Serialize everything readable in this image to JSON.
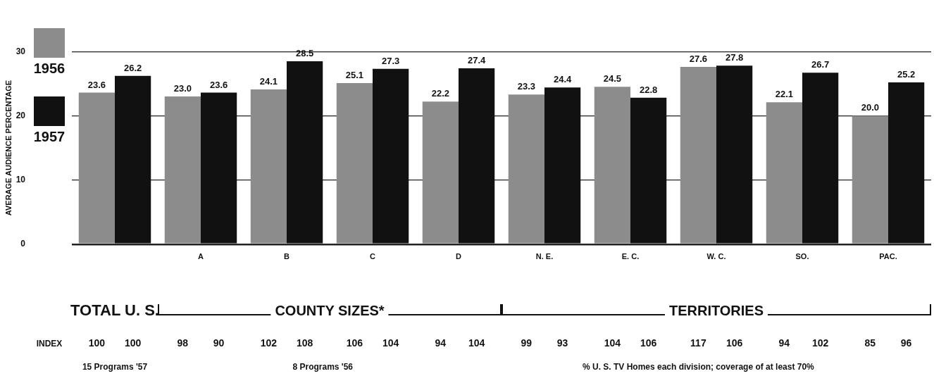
{
  "chart_data": {
    "type": "bar",
    "ylabel": "AVERAGE AUDIENCE PERCENTAGE",
    "categories": [
      null,
      "A",
      "B",
      "C",
      "D",
      "N. E.",
      "E. C.",
      "W. C.",
      "SO.",
      "PAC."
    ],
    "series": [
      {
        "name": "1956",
        "color": "#8c8c8c",
        "values": [
          23.6,
          23.0,
          24.1,
          25.1,
          22.2,
          23.3,
          24.5,
          27.6,
          22.1,
          20.0
        ],
        "value_labels": [
          "23.6",
          "23.0",
          "24.1",
          "25.1",
          "22.2",
          "23.3",
          "24.5",
          "27.6",
          "22.1",
          "20.0"
        ]
      },
      {
        "name": "1957",
        "color": "#111111",
        "values": [
          26.2,
          23.6,
          28.5,
          27.3,
          27.4,
          24.4,
          22.8,
          27.8,
          26.7,
          25.2
        ],
        "value_labels": [
          "26.2",
          "23.6",
          "28.5",
          "27.3",
          "27.4",
          "24.4",
          "22.8",
          "27.8",
          "26.7",
          "25.2"
        ]
      }
    ],
    "ylim": [
      0,
      30
    ],
    "yticks": [
      0,
      10,
      20,
      30
    ],
    "grid": "y",
    "legend": "left",
    "annotations": [
      "TOTAL U. S.",
      "COUNTY SIZES*",
      "TERRITORIES",
      "INDEX",
      "100",
      "100",
      "98",
      "90",
      "102",
      "108",
      "106",
      "104",
      "94",
      "104",
      "99",
      "93",
      "104",
      "106",
      "117",
      "106",
      "94",
      "102",
      "85",
      "96",
      "15 Programs '57",
      "8 Programs '56",
      "% U. S. TV Homes each division; coverage of at least 70%"
    ]
  }
}
